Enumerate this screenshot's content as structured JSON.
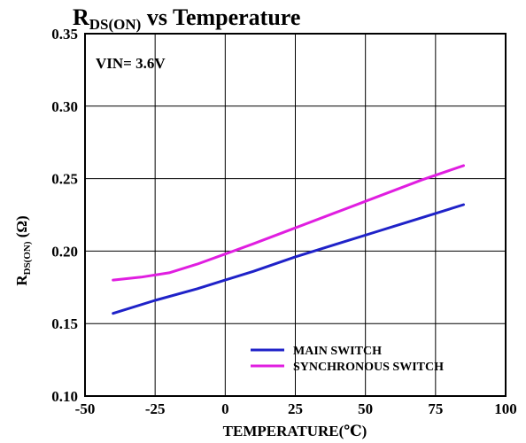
{
  "chart_data": {
    "type": "line",
    "title": {
      "prefix": "R",
      "subscript": "DS(ON)",
      "suffix": " vs Temperature"
    },
    "annotation": "VIN= 3.6V",
    "xlabel": "TEMPERATURE(℃)",
    "ylabel": {
      "prefix": "R",
      "subscript": "DS(ON)",
      "suffix": " (Ω)"
    },
    "xlim": [
      -50,
      100
    ],
    "ylim": [
      0.1,
      0.35
    ],
    "xticks": [
      "-50",
      "-25",
      "0",
      "25",
      "50",
      "75",
      "100"
    ],
    "yticks": [
      "0.10",
      "0.15",
      "0.20",
      "0.25",
      "0.30",
      "0.35"
    ],
    "grid": true,
    "legend_position": "bottom-right",
    "series": [
      {
        "name": "MAIN SWITCH",
        "color": "#1f22c8",
        "x": [
          -40,
          -25,
          -10,
          0,
          10,
          25,
          40,
          55,
          70,
          85
        ],
        "y": [
          0.157,
          0.166,
          0.174,
          0.18,
          0.186,
          0.196,
          0.205,
          0.214,
          0.223,
          0.232
        ]
      },
      {
        "name": "SYNCHRONOUS SWITCH",
        "color": "#e01ee0",
        "x": [
          -40,
          -30,
          -20,
          -10,
          0,
          10,
          25,
          40,
          55,
          70,
          85
        ],
        "y": [
          0.18,
          0.182,
          0.185,
          0.191,
          0.198,
          0.205,
          0.216,
          0.227,
          0.238,
          0.249,
          0.259
        ]
      }
    ]
  }
}
